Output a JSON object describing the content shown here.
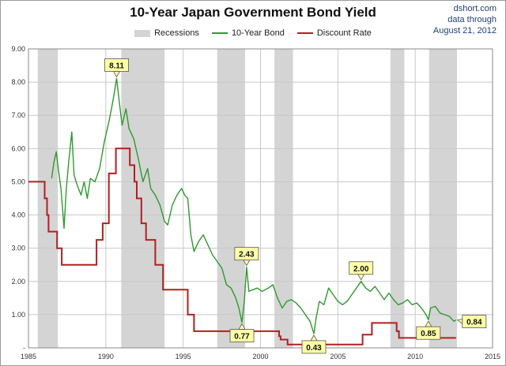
{
  "header": {
    "title": "10-Year Japan Government Bond Yield",
    "source_lines": [
      "dshort.com",
      "data through",
      "August 21, 2012"
    ]
  },
  "colors": {
    "recession": "#d4d4d4",
    "bond": "#2e9a2e",
    "discount": "#b02020",
    "grid": "#c8c8c8",
    "callout_fill": "#ffffa8"
  },
  "chart_data": {
    "type": "line",
    "title": "10-Year Japan Government Bond Yield",
    "xlabel": "",
    "ylabel": "",
    "xlim": [
      1985,
      2015
    ],
    "ylim": [
      0,
      9
    ],
    "grid": true,
    "legend_position": "top-center",
    "x_ticks": [
      "1985",
      "1990",
      "1995",
      "2000",
      "2005",
      "2010",
      "2015"
    ],
    "y_ticks": [
      "-",
      "1.00",
      "2.00",
      "3.00",
      "4.00",
      "5.00",
      "6.00",
      "7.00",
      "8.00",
      "9.00"
    ],
    "legend": [
      "Recessions",
      "10-Year Bond",
      "Discount Rate"
    ],
    "recessions": [
      [
        1985.6,
        1986.9
      ],
      [
        1991.0,
        1993.8
      ],
      [
        1997.2,
        1999.0
      ],
      [
        2000.9,
        2002.1
      ],
      [
        2008.4,
        2009.3
      ],
      [
        2010.9,
        2012.7
      ]
    ],
    "series": [
      {
        "name": "10-Year Bond",
        "points": [
          [
            1986.5,
            5.1
          ],
          [
            1986.65,
            5.6
          ],
          [
            1986.8,
            5.9
          ],
          [
            1986.95,
            5.3
          ],
          [
            1987.1,
            4.8
          ],
          [
            1987.3,
            3.6
          ],
          [
            1987.45,
            4.8
          ],
          [
            1987.6,
            5.6
          ],
          [
            1987.8,
            6.5
          ],
          [
            1987.95,
            5.2
          ],
          [
            1988.15,
            4.9
          ],
          [
            1988.4,
            4.6
          ],
          [
            1988.6,
            5.0
          ],
          [
            1988.8,
            4.5
          ],
          [
            1989.0,
            5.1
          ],
          [
            1989.3,
            5.0
          ],
          [
            1989.6,
            5.4
          ],
          [
            1989.9,
            6.2
          ],
          [
            1990.2,
            6.8
          ],
          [
            1990.45,
            7.4
          ],
          [
            1990.7,
            8.11
          ],
          [
            1990.9,
            7.3
          ],
          [
            1991.05,
            6.7
          ],
          [
            1991.3,
            7.2
          ],
          [
            1991.5,
            6.6
          ],
          [
            1991.8,
            6.3
          ],
          [
            1992.1,
            5.7
          ],
          [
            1992.4,
            5.0
          ],
          [
            1992.7,
            5.4
          ],
          [
            1992.9,
            4.8
          ],
          [
            1993.2,
            4.6
          ],
          [
            1993.5,
            4.3
          ],
          [
            1993.8,
            3.8
          ],
          [
            1994.0,
            3.7
          ],
          [
            1994.3,
            4.3
          ],
          [
            1994.6,
            4.6
          ],
          [
            1994.9,
            4.8
          ],
          [
            1995.1,
            4.6
          ],
          [
            1995.3,
            4.5
          ],
          [
            1995.5,
            3.4
          ],
          [
            1995.7,
            2.9
          ],
          [
            1996.0,
            3.2
          ],
          [
            1996.3,
            3.4
          ],
          [
            1996.6,
            3.1
          ],
          [
            1996.9,
            2.8
          ],
          [
            1997.2,
            2.6
          ],
          [
            1997.5,
            2.4
          ],
          [
            1997.8,
            1.9
          ],
          [
            1998.1,
            1.8
          ],
          [
            1998.4,
            1.5
          ],
          [
            1998.6,
            1.2
          ],
          [
            1998.8,
            0.77
          ],
          [
            1998.95,
            1.4
          ],
          [
            1999.1,
            2.43
          ],
          [
            1999.25,
            1.7
          ],
          [
            1999.5,
            1.75
          ],
          [
            1999.8,
            1.8
          ],
          [
            2000.1,
            1.7
          ],
          [
            2000.5,
            1.8
          ],
          [
            2000.8,
            1.9
          ],
          [
            2001.1,
            1.5
          ],
          [
            2001.4,
            1.2
          ],
          [
            2001.7,
            1.4
          ],
          [
            2002.0,
            1.45
          ],
          [
            2002.3,
            1.35
          ],
          [
            2002.6,
            1.2
          ],
          [
            2002.9,
            1.0
          ],
          [
            2003.2,
            0.8
          ],
          [
            2003.45,
            0.43
          ],
          [
            2003.6,
            0.9
          ],
          [
            2003.8,
            1.4
          ],
          [
            2004.1,
            1.3
          ],
          [
            2004.4,
            1.8
          ],
          [
            2004.7,
            1.6
          ],
          [
            2005.0,
            1.4
          ],
          [
            2005.3,
            1.3
          ],
          [
            2005.6,
            1.4
          ],
          [
            2005.9,
            1.6
          ],
          [
            2006.2,
            1.8
          ],
          [
            2006.5,
            2.0
          ],
          [
            2006.8,
            1.8
          ],
          [
            2007.1,
            1.7
          ],
          [
            2007.4,
            1.85
          ],
          [
            2007.7,
            1.65
          ],
          [
            2008.0,
            1.45
          ],
          [
            2008.3,
            1.65
          ],
          [
            2008.6,
            1.45
          ],
          [
            2008.9,
            1.3
          ],
          [
            2009.2,
            1.35
          ],
          [
            2009.5,
            1.45
          ],
          [
            2009.8,
            1.3
          ],
          [
            2010.1,
            1.35
          ],
          [
            2010.4,
            1.2
          ],
          [
            2010.7,
            1.0
          ],
          [
            2010.85,
            0.85
          ],
          [
            2011.0,
            1.2
          ],
          [
            2011.3,
            1.25
          ],
          [
            2011.6,
            1.05
          ],
          [
            2011.9,
            1.0
          ],
          [
            2012.2,
            0.95
          ],
          [
            2012.5,
            0.8
          ],
          [
            2012.64,
            0.84
          ]
        ]
      },
      {
        "name": "Discount Rate",
        "steps": [
          [
            1985.0,
            5.0
          ],
          [
            1986.05,
            4.5
          ],
          [
            1986.2,
            4.0
          ],
          [
            1986.3,
            3.5
          ],
          [
            1986.85,
            3.0
          ],
          [
            1987.15,
            2.5
          ],
          [
            1989.4,
            3.25
          ],
          [
            1989.8,
            3.75
          ],
          [
            1990.2,
            5.25
          ],
          [
            1990.65,
            6.0
          ],
          [
            1991.55,
            5.5
          ],
          [
            1991.85,
            5.0
          ],
          [
            1992.0,
            4.5
          ],
          [
            1992.3,
            3.75
          ],
          [
            1992.6,
            3.25
          ],
          [
            1993.2,
            2.5
          ],
          [
            1993.7,
            1.75
          ],
          [
            1995.3,
            1.0
          ],
          [
            1995.7,
            0.5
          ],
          [
            2001.2,
            0.35
          ],
          [
            2001.3,
            0.25
          ],
          [
            2001.75,
            0.1
          ],
          [
            2006.6,
            0.4
          ],
          [
            2007.2,
            0.75
          ],
          [
            2008.8,
            0.5
          ],
          [
            2008.95,
            0.3
          ],
          [
            2012.64,
            0.3
          ]
        ]
      }
    ],
    "annotations": [
      {
        "label": "8.11",
        "x": 1990.7,
        "y": 8.11,
        "placement": "above"
      },
      {
        "label": "2.43",
        "x": 1999.1,
        "y": 2.43,
        "placement": "above"
      },
      {
        "label": "0.77",
        "x": 1998.8,
        "y": 0.77,
        "placement": "below"
      },
      {
        "label": "0.43",
        "x": 2003.45,
        "y": 0.43,
        "placement": "below"
      },
      {
        "label": "2.00",
        "x": 2006.5,
        "y": 2.0,
        "placement": "above"
      },
      {
        "label": "0.85",
        "x": 2010.85,
        "y": 0.85,
        "placement": "below"
      },
      {
        "label": "0.84",
        "x": 2012.64,
        "y": 0.84,
        "placement": "right"
      }
    ]
  }
}
